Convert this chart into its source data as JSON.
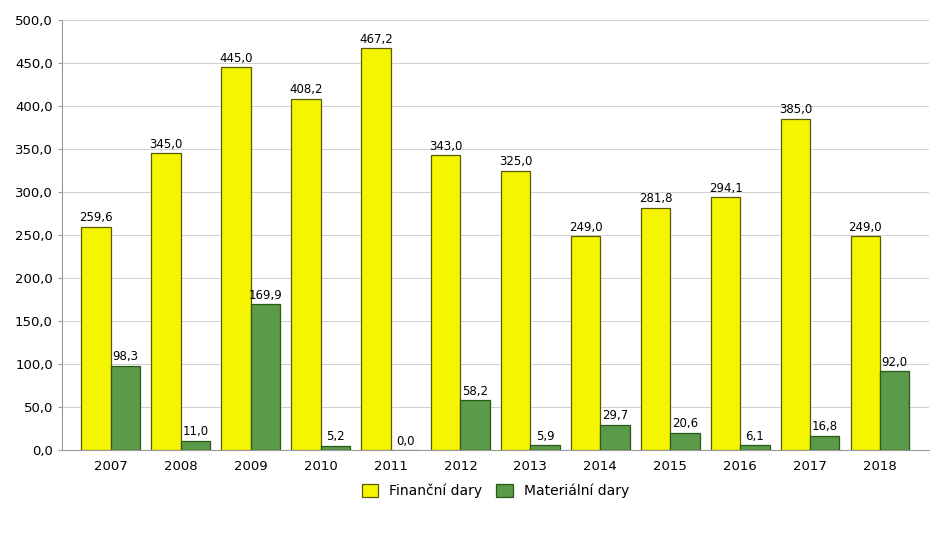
{
  "years": [
    2007,
    2008,
    2009,
    2010,
    2011,
    2012,
    2013,
    2014,
    2015,
    2016,
    2017,
    2018
  ],
  "financni_dary": [
    259.6,
    345.0,
    445.0,
    408.2,
    467.2,
    343.0,
    325.0,
    249.0,
    281.8,
    294.1,
    385.0,
    249.0
  ],
  "materialni_dary": [
    98.3,
    11.0,
    169.9,
    5.2,
    0.0,
    58.2,
    5.9,
    29.7,
    20.6,
    6.1,
    16.8,
    92.0
  ],
  "bar_color_financni": "#f5f500",
  "bar_edge_color_financni": "#5a5a00",
  "bar_color_materialni": "#5a9a48",
  "bar_edge_color_materialni": "#2a5a18",
  "legend_financni": "Finanční dary",
  "legend_materialni": "Materiální dary",
  "ylim": [
    0,
    500
  ],
  "yticks": [
    0.0,
    50.0,
    100.0,
    150.0,
    200.0,
    250.0,
    300.0,
    350.0,
    400.0,
    450.0,
    500.0
  ],
  "background_color": "#ffffff",
  "grid_color": "#d0d0d0",
  "bar_width": 0.42,
  "label_fontsize": 8.5,
  "tick_fontsize": 9.5,
  "legend_fontsize": 10
}
